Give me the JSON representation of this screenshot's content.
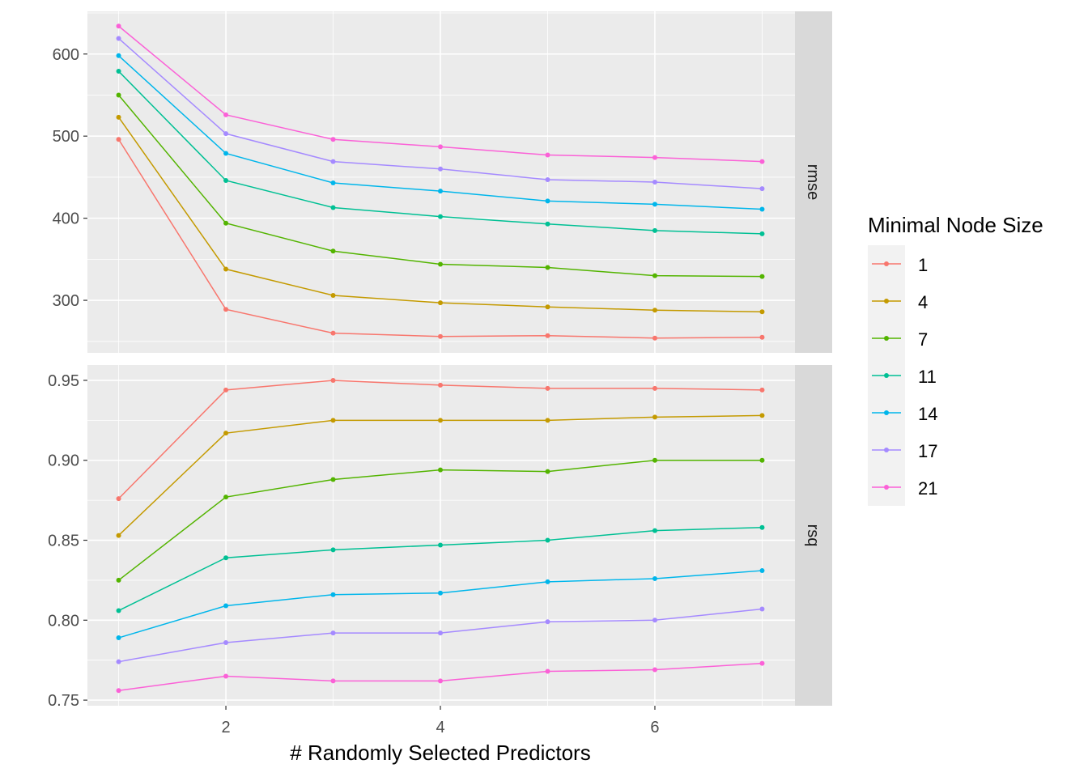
{
  "chart_data": {
    "type": "line",
    "xlabel": "# Randomly Selected Predictors",
    "ylabel": "",
    "x": [
      1,
      2,
      3,
      4,
      5,
      6,
      7
    ],
    "x_ticks": [
      "2",
      "4",
      "6"
    ],
    "xlim": [
      0.709,
      7.306
    ],
    "grid": true,
    "legend": {
      "title": "Minimal Node Size",
      "placement": "right"
    },
    "panels": [
      {
        "strip": "rmse",
        "ylim": [
          236,
          652
        ],
        "y_ticks": [
          "300",
          "400",
          "500",
          "600"
        ],
        "series": [
          {
            "name": "1",
            "color": "#F8766D",
            "values": [
              496,
              289,
              260,
              256,
              257,
              254,
              255
            ]
          },
          {
            "name": "4",
            "color": "#C49A00",
            "values": [
              523,
              338,
              306,
              297,
              292,
              288,
              286
            ]
          },
          {
            "name": "7",
            "color": "#53B400",
            "values": [
              550,
              394,
              360,
              344,
              340,
              330,
              329
            ]
          },
          {
            "name": "11",
            "color": "#00C094",
            "values": [
              579,
              446,
              413,
              402,
              393,
              385,
              381
            ]
          },
          {
            "name": "14",
            "color": "#00B6EB",
            "values": [
              598,
              479,
              443,
              433,
              421,
              417,
              411
            ]
          },
          {
            "name": "17",
            "color": "#A58AFF",
            "values": [
              619,
              503,
              469,
              460,
              447,
              444,
              436
            ]
          },
          {
            "name": "21",
            "color": "#FB61D7",
            "values": [
              634,
              526,
              496,
              487,
              477,
              474,
              469
            ]
          }
        ]
      },
      {
        "strip": "rsq",
        "ylim": [
          0.7465,
          0.9596
        ],
        "y_ticks": [
          "0.75",
          "0.80",
          "0.85",
          "0.90",
          "0.95"
        ],
        "series": [
          {
            "name": "1",
            "color": "#F8766D",
            "values": [
              0.876,
              0.944,
              0.95,
              0.947,
              0.945,
              0.945,
              0.944
            ]
          },
          {
            "name": "4",
            "color": "#C49A00",
            "values": [
              0.853,
              0.917,
              0.925,
              0.925,
              0.925,
              0.927,
              0.928
            ]
          },
          {
            "name": "7",
            "color": "#53B400",
            "values": [
              0.825,
              0.877,
              0.888,
              0.894,
              0.893,
              0.9,
              0.9
            ]
          },
          {
            "name": "11",
            "color": "#00C094",
            "values": [
              0.806,
              0.839,
              0.844,
              0.847,
              0.85,
              0.856,
              0.858
            ]
          },
          {
            "name": "14",
            "color": "#00B6EB",
            "values": [
              0.789,
              0.809,
              0.816,
              0.817,
              0.824,
              0.826,
              0.831
            ]
          },
          {
            "name": "17",
            "color": "#A58AFF",
            "values": [
              0.774,
              0.786,
              0.792,
              0.792,
              0.799,
              0.8,
              0.807
            ]
          },
          {
            "name": "21",
            "color": "#FB61D7",
            "values": [
              0.756,
              0.765,
              0.762,
              0.762,
              0.768,
              0.769,
              0.773
            ]
          }
        ]
      }
    ]
  }
}
